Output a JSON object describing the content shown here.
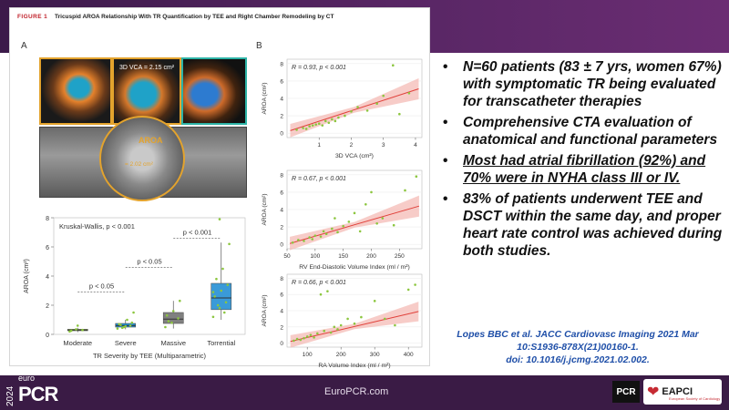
{
  "figure": {
    "label": "FIGURE 1",
    "title": "Tricuspid AROA Relationship With TR Quantification by TEE and Right Chamber Remodeling by CT",
    "panel_a": "A",
    "panel_b": "B",
    "echo_vca_label": "3D VCA = 2.15 cm²",
    "aroa_label": "AROA",
    "aroa_value": "= 2.02 cm²"
  },
  "chart_data": [
    {
      "type": "box",
      "title": "Kruskal-Wallis, p < 0.001",
      "xlabel": "TR Severity by TEE (Multiparametric)",
      "ylabel": "AROA (cm²)",
      "ylim": [
        0,
        8
      ],
      "yticks": [
        0,
        2,
        4,
        6,
        8
      ],
      "categories": [
        "Moderate",
        "Severe",
        "Massive",
        "Torrential"
      ],
      "colors": [
        "#9acd32",
        "#1e90d6",
        "#808080",
        "#3a9ad8"
      ],
      "boxes": [
        {
          "min": 0.15,
          "q1": 0.25,
          "median": 0.3,
          "q3": 0.35,
          "max": 0.45
        },
        {
          "min": 0.35,
          "q1": 0.5,
          "median": 0.6,
          "q3": 0.75,
          "max": 1.0
        },
        {
          "min": 0.4,
          "q1": 0.75,
          "median": 1.05,
          "q3": 1.5,
          "max": 2.3
        },
        {
          "min": 1.0,
          "q1": 1.7,
          "median": 2.5,
          "q3": 3.5,
          "max": 6.3
        }
      ],
      "points": [
        [
          0.2,
          0.35,
          0.3,
          0.25,
          0.6
        ],
        [
          0.4,
          0.5,
          0.6,
          0.7,
          0.55,
          0.8,
          0.65,
          1.0,
          1.5,
          0.45
        ],
        [
          0.5,
          0.8,
          1.1,
          1.3,
          1.6,
          2.3,
          0.9
        ],
        [
          1.2,
          1.8,
          2.2,
          2.6,
          3.0,
          3.4,
          3.8,
          4.5,
          6.2,
          2.0,
          1.5,
          2.9,
          7.9
        ]
      ],
      "comparisons": [
        {
          "from": 0,
          "to": 1,
          "y": 2.9,
          "label": "p < 0.05"
        },
        {
          "from": 1,
          "to": 2,
          "y": 4.6,
          "label": "p < 0.05"
        },
        {
          "from": 2,
          "to": 3,
          "y": 6.6,
          "label": "p < 0.001"
        }
      ]
    },
    {
      "type": "scatter",
      "annotation": "R = 0.93, p < 0.001",
      "xlabel": "3D VCA (cm²)",
      "ylabel": "AROA (cm²)",
      "xlim": [
        0,
        4.2
      ],
      "ylim": [
        -0.5,
        8.5
      ],
      "xticks": [
        1,
        2,
        3,
        4
      ],
      "yticks": [
        0,
        2,
        4,
        6,
        8
      ],
      "fit": {
        "x0": 0.1,
        "y0": 0.3,
        "x1": 4.1,
        "y1": 5.1
      },
      "x": [
        0.3,
        0.5,
        0.6,
        0.7,
        0.8,
        0.9,
        1.0,
        1.1,
        1.2,
        1.3,
        1.4,
        1.5,
        1.6,
        1.8,
        2.0,
        2.2,
        2.5,
        2.8,
        3.0,
        3.3,
        3.5,
        3.8
      ],
      "y": [
        0.4,
        0.6,
        0.5,
        0.8,
        0.9,
        1.0,
        1.1,
        0.9,
        1.4,
        1.2,
        1.6,
        1.4,
        1.8,
        2.0,
        2.5,
        3.0,
        2.6,
        3.4,
        4.3,
        7.8,
        2.2,
        4.6
      ]
    },
    {
      "type": "scatter",
      "annotation": "R = 0.67, p < 0.001",
      "xlabel": "RV End-Diastolic Volume Index (ml / m²)",
      "ylabel": "AROA (cm²)",
      "xlim": [
        50,
        290
      ],
      "ylim": [
        -0.5,
        8.5
      ],
      "xticks": [
        50,
        100,
        150,
        200,
        250
      ],
      "yticks": [
        0,
        2,
        4,
        6,
        8
      ],
      "fit": {
        "x0": 55,
        "y0": 0.1,
        "x1": 285,
        "y1": 4.4
      },
      "x": [
        60,
        70,
        80,
        90,
        95,
        100,
        110,
        115,
        120,
        130,
        135,
        140,
        150,
        160,
        170,
        180,
        190,
        200,
        210,
        220,
        240,
        260,
        280
      ],
      "y": [
        0.2,
        0.5,
        0.4,
        0.8,
        0.6,
        1.0,
        0.9,
        1.5,
        1.2,
        1.8,
        3.0,
        1.4,
        2.1,
        2.6,
        3.6,
        1.5,
        4.6,
        6.0,
        2.4,
        3.0,
        2.2,
        6.2,
        7.8
      ]
    },
    {
      "type": "scatter",
      "annotation": "R = 0.66, p < 0.001",
      "xlabel": "RA Volume Index (ml / m²)",
      "ylabel": "AROA (cm²)",
      "xlim": [
        40,
        440
      ],
      "ylim": [
        -0.5,
        8.5
      ],
      "xticks": [
        100,
        200,
        300,
        400
      ],
      "yticks": [
        0,
        2,
        4,
        6,
        8
      ],
      "fit": {
        "x0": 50,
        "y0": 0.2,
        "x1": 430,
        "y1": 3.9
      },
      "x": [
        60,
        70,
        80,
        90,
        100,
        110,
        120,
        130,
        140,
        150,
        160,
        170,
        180,
        190,
        200,
        220,
        240,
        260,
        300,
        330,
        360,
        400,
        420
      ],
      "y": [
        0.3,
        0.5,
        0.4,
        0.6,
        0.8,
        1.0,
        0.7,
        1.2,
        6.0,
        1.5,
        6.4,
        1.3,
        2.0,
        1.7,
        2.2,
        3.0,
        2.4,
        3.2,
        5.2,
        3.0,
        2.2,
        6.6,
        7.2
      ]
    }
  ],
  "bullets": [
    {
      "text": "N=60 patients (83 ± 7 yrs, women 67%) with symptomatic TR being evaluated for transcatheter therapies",
      "underline": false
    },
    {
      "text": "Comprehensive CTA evaluation of anatomical and functional parameters",
      "underline": false
    },
    {
      "text": "Most had atrial fibrillation (92%) and 70% were in NYHA class III or IV.",
      "underline": true
    },
    {
      "text": "83% of patients underwent TEE and DSCT within the same day, and proper heart rate control was achieved during both studies.",
      "underline": false
    }
  ],
  "bullet_glyph": "•",
  "citation": {
    "line1": "Lopes BBC et al. JACC Cardiovasc Imaging 2021 Mar",
    "line2": "10:S1936-878X(21)00160-1.",
    "line3": "doi: 10.1016/j.jcmg.2021.02.002."
  },
  "footer": {
    "logo_year": "2024",
    "logo_word": "euro",
    "logo_brand": "PCR",
    "website": "EuroPCR.com",
    "pcr_badge": "PCR",
    "eapci": "EAPCI",
    "eapci_sub": "European Society of Cardiology"
  },
  "colors": {
    "banner": "#4a1f55",
    "citation": "#1f4fa8",
    "point": "#8cc63f",
    "fit_line": "#e0403a",
    "fit_band": "#f4b6b0"
  }
}
